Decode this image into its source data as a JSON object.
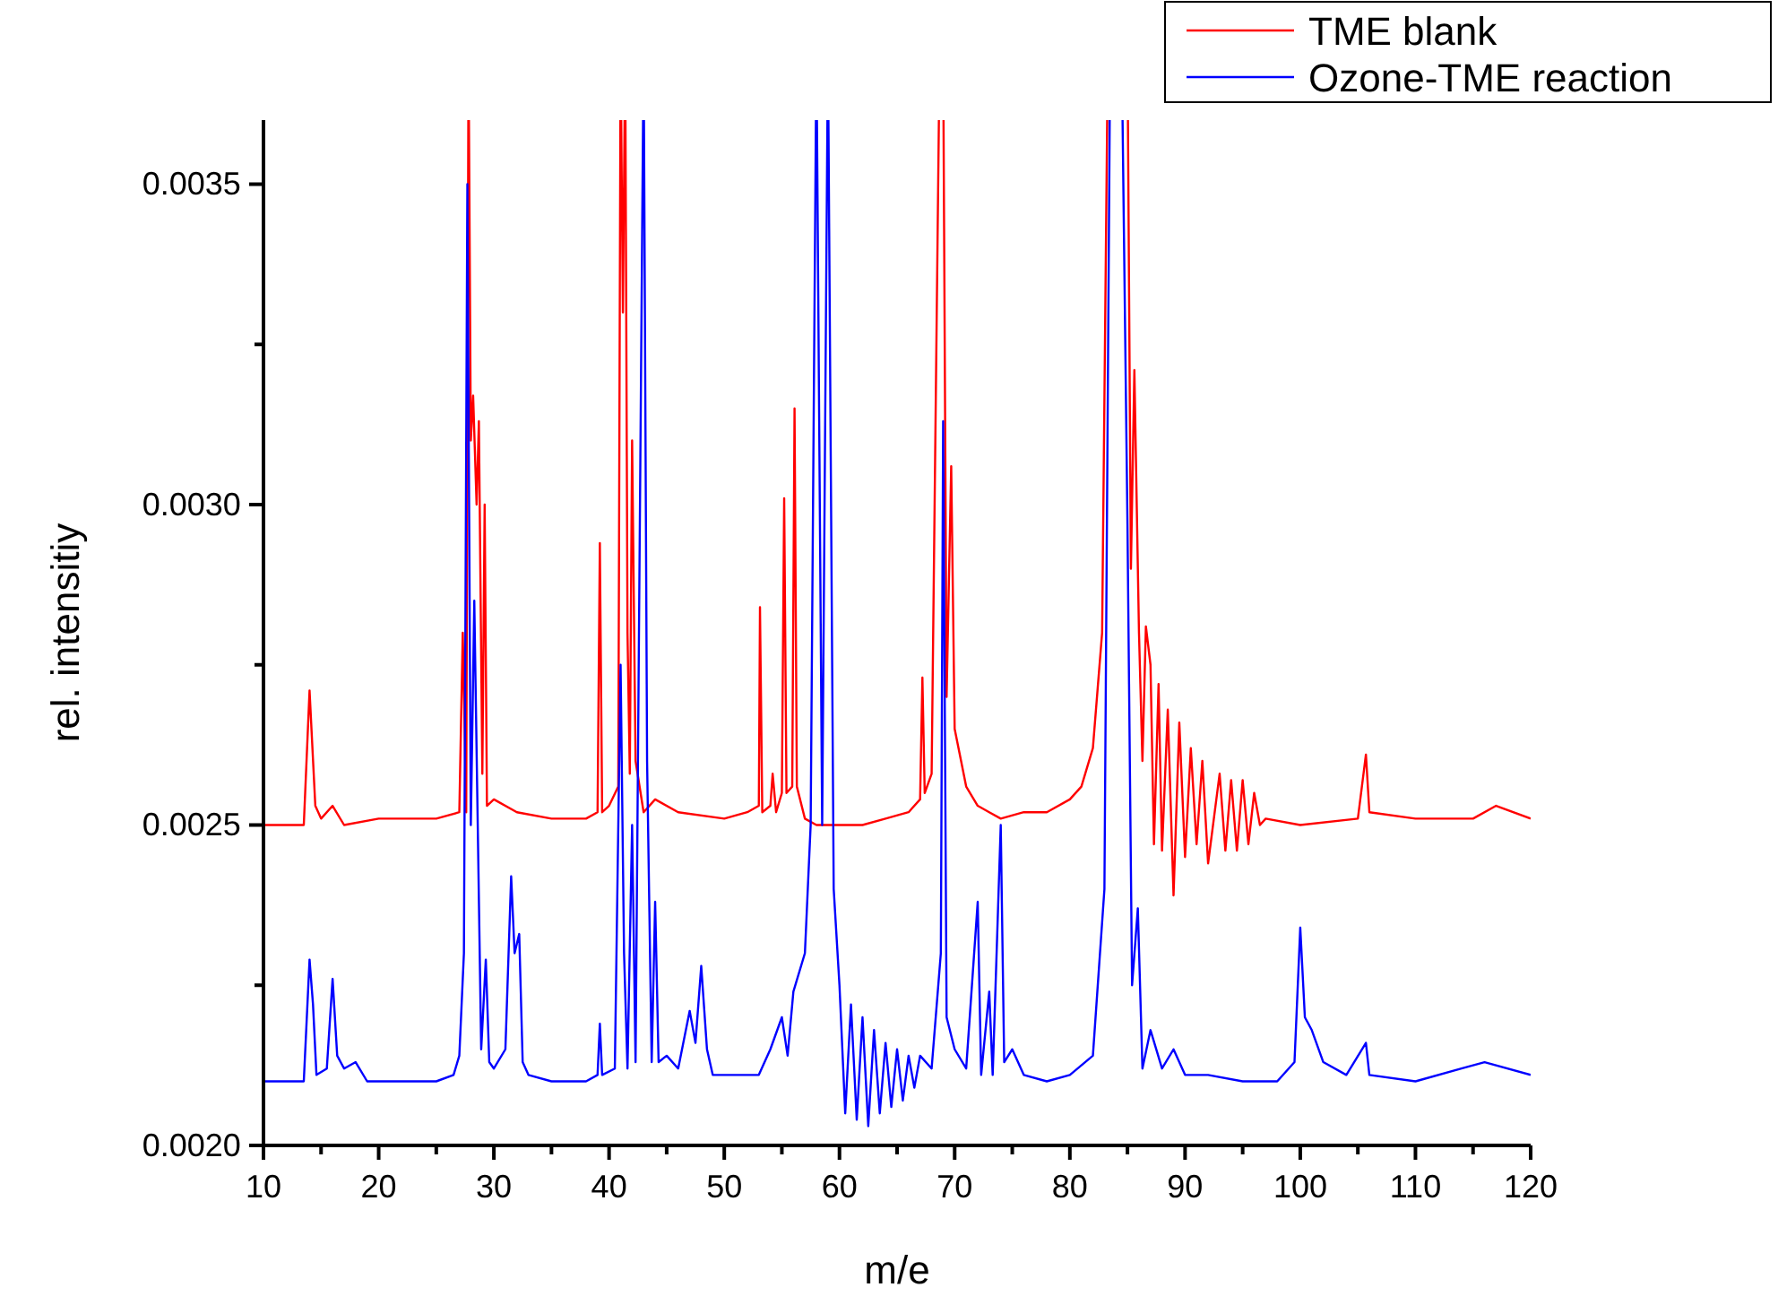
{
  "chart_data": {
    "type": "line",
    "xlabel": "m/e",
    "ylabel": "rel. intensitiy",
    "xlim": [
      10,
      120
    ],
    "ylim": [
      0.002,
      0.0036
    ],
    "xticks": [
      10,
      {
        "value": 15,
        "label": null
      },
      20,
      {
        "value": 25,
        "label": null
      },
      30,
      {
        "value": 35,
        "label": null
      },
      40,
      {
        "value": 45,
        "label": null
      },
      50,
      {
        "value": 55,
        "label": null
      },
      60,
      {
        "value": 65,
        "label": null
      },
      70,
      {
        "value": 75,
        "label": null
      },
      80,
      {
        "value": 85,
        "label": null
      },
      90,
      {
        "value": 95,
        "label": null
      },
      100,
      {
        "value": 105,
        "label": null
      },
      110,
      {
        "value": 115,
        "label": null
      },
      120
    ],
    "yticks": [
      {
        "value": 0.002,
        "label": "0.0020"
      },
      {
        "value": 0.00225,
        "label": null
      },
      {
        "value": 0.0025,
        "label": "0.0025"
      },
      {
        "value": 0.00275,
        "label": null
      },
      {
        "value": 0.003,
        "label": "0.0030"
      },
      {
        "value": 0.00325,
        "label": null
      },
      {
        "value": 0.0035,
        "label": "0.0035"
      }
    ],
    "grid": false,
    "legend": "top right",
    "marker": "none",
    "line_style": "solid",
    "series": [
      {
        "name": "TME blank",
        "color": "#ff0000",
        "x": [
          10,
          13.5,
          14,
          14.5,
          15,
          16,
          17,
          20,
          25,
          27,
          27.3,
          27.6,
          27.8,
          28,
          28.2,
          28.5,
          28.7,
          29,
          29.2,
          29.4,
          30,
          32,
          35,
          38,
          39,
          39.2,
          39.4,
          40,
          40.8,
          41,
          41.2,
          41.4,
          41.6,
          41.8,
          42,
          42.3,
          43,
          44,
          46,
          50,
          52,
          53,
          53.1,
          53.3,
          54,
          54.2,
          54.5,
          55,
          55.2,
          55.4,
          55.9,
          56.1,
          56.3,
          57,
          58,
          60,
          62,
          64,
          66,
          67,
          67.2,
          67.4,
          68,
          68.7,
          69,
          69.3,
          69.7,
          70,
          71,
          72,
          73,
          74,
          76,
          78,
          80,
          81,
          82,
          82.8,
          83.3,
          85,
          85.3,
          85.6,
          86,
          86.3,
          86.6,
          87,
          87.3,
          87.7,
          88,
          88.5,
          89,
          89.5,
          90,
          90.5,
          91,
          91.5,
          92,
          93,
          93.5,
          94,
          94.5,
          95,
          95.5,
          96,
          96.5,
          97,
          100,
          105,
          105.7,
          106,
          110,
          115,
          117,
          120
        ],
        "values": [
          0.0025,
          0.0025,
          0.00271,
          0.00253,
          0.00251,
          0.00253,
          0.0025,
          0.00251,
          0.00251,
          0.00252,
          0.0028,
          0.00252,
          null,
          0.0031,
          0.00317,
          0.003,
          0.00313,
          0.00258,
          0.003,
          0.00253,
          0.00254,
          0.00252,
          0.00251,
          0.00251,
          0.00252,
          0.00294,
          0.00252,
          0.00253,
          0.00256,
          null,
          0.0033,
          null,
          0.0028,
          0.00258,
          0.0031,
          0.0026,
          0.00252,
          0.00254,
          0.00252,
          0.00251,
          0.00252,
          0.00253,
          0.00284,
          0.00252,
          0.00253,
          0.00258,
          0.00252,
          0.00255,
          0.00301,
          0.00255,
          0.00256,
          0.00315,
          0.00256,
          0.00251,
          0.0025,
          0.0025,
          0.0025,
          0.00251,
          0.00252,
          0.00254,
          0.00273,
          0.00255,
          0.00258,
          null,
          null,
          0.0027,
          0.00306,
          0.00265,
          0.00256,
          0.00253,
          0.00252,
          0.00251,
          0.00252,
          0.00252,
          0.00254,
          0.00256,
          0.00262,
          0.0028,
          null,
          null,
          0.0029,
          0.00321,
          0.0028,
          0.0026,
          0.00281,
          0.00275,
          0.00247,
          0.00272,
          0.00246,
          0.00268,
          0.00239,
          0.00266,
          0.00245,
          0.00262,
          0.00247,
          0.0026,
          0.00244,
          0.00258,
          0.00246,
          0.00257,
          0.00246,
          0.00257,
          0.00247,
          0.00255,
          0.0025,
          0.00251,
          0.0025,
          0.00251,
          0.00261,
          0.00252,
          0.00251,
          0.00251,
          0.00253,
          0.00251
        ]
      },
      {
        "name": "Ozone-TME reaction",
        "color": "#0000ff",
        "x": [
          10,
          13.5,
          14,
          14.3,
          14.6,
          15.5,
          16,
          16.4,
          17,
          18,
          19,
          22,
          25,
          26.5,
          27,
          27.4,
          27.7,
          28,
          28.3,
          28.6,
          28.9,
          29.3,
          29.6,
          30,
          31,
          31.5,
          31.8,
          32.2,
          32.5,
          33,
          35,
          38,
          39,
          39.2,
          39.4,
          40.5,
          41,
          41.3,
          41.6,
          42,
          42.3,
          43,
          43.3,
          43.7,
          44,
          44.3,
          45,
          46,
          47,
          47.5,
          48,
          48.5,
          49,
          51,
          53,
          54,
          55,
          55.5,
          56,
          57,
          57.5,
          58,
          58.5,
          59,
          59.5,
          60,
          60.5,
          61,
          61.5,
          62,
          62.5,
          63,
          63.5,
          64,
          64.5,
          65,
          65.5,
          66,
          66.5,
          67,
          68,
          68.8,
          69,
          69.3,
          70,
          71,
          72,
          72.3,
          73,
          73.3,
          74,
          74.3,
          75,
          76,
          78,
          80,
          82,
          83,
          83.5,
          84.5,
          85,
          85.4,
          85.9,
          86.3,
          87,
          88,
          89,
          90,
          92,
          95,
          98,
          99.5,
          100,
          100.4,
          101,
          102,
          104,
          105.7,
          106,
          110,
          114,
          116,
          120
        ],
        "values": [
          0.0021,
          0.0021,
          0.00229,
          0.00222,
          0.00211,
          0.00212,
          0.00226,
          0.00214,
          0.00212,
          0.00213,
          0.0021,
          0.0021,
          0.0021,
          0.00211,
          0.00214,
          0.0023,
          0.0035,
          0.0025,
          0.00285,
          0.0025,
          0.00215,
          0.00229,
          0.00213,
          0.00212,
          0.00215,
          0.00242,
          0.0023,
          0.00233,
          0.00213,
          0.00211,
          0.0021,
          0.0021,
          0.00211,
          0.00219,
          0.00211,
          0.00212,
          0.00275,
          0.0023,
          0.00212,
          0.0025,
          0.00213,
          null,
          0.0026,
          0.00213,
          0.00238,
          0.00213,
          0.00214,
          0.00212,
          0.00221,
          0.00216,
          0.00228,
          0.00215,
          0.00211,
          0.00211,
          0.00211,
          0.00215,
          0.0022,
          0.00214,
          0.00224,
          0.0023,
          0.0025,
          null,
          0.0025,
          null,
          0.0024,
          0.00225,
          0.00205,
          0.00222,
          0.00204,
          0.0022,
          0.00203,
          0.00218,
          0.00205,
          0.00216,
          0.00206,
          0.00215,
          0.00207,
          0.00214,
          0.00209,
          0.00214,
          0.00212,
          0.0023,
          0.00313,
          0.0022,
          0.00215,
          0.00212,
          0.00238,
          0.00211,
          0.00224,
          0.00211,
          0.0025,
          0.00213,
          0.00215,
          0.00211,
          0.0021,
          0.00211,
          0.00214,
          0.0024,
          null,
          null,
          0.00297,
          0.00225,
          0.00237,
          0.00212,
          0.00218,
          0.00212,
          0.00215,
          0.00211,
          0.00211,
          0.0021,
          0.0021,
          0.00213,
          0.00234,
          0.0022,
          0.00218,
          0.00213,
          0.00211,
          0.00216,
          0.00211,
          0.0021,
          0.00212,
          0.00213,
          0.00211
        ]
      }
    ]
  }
}
